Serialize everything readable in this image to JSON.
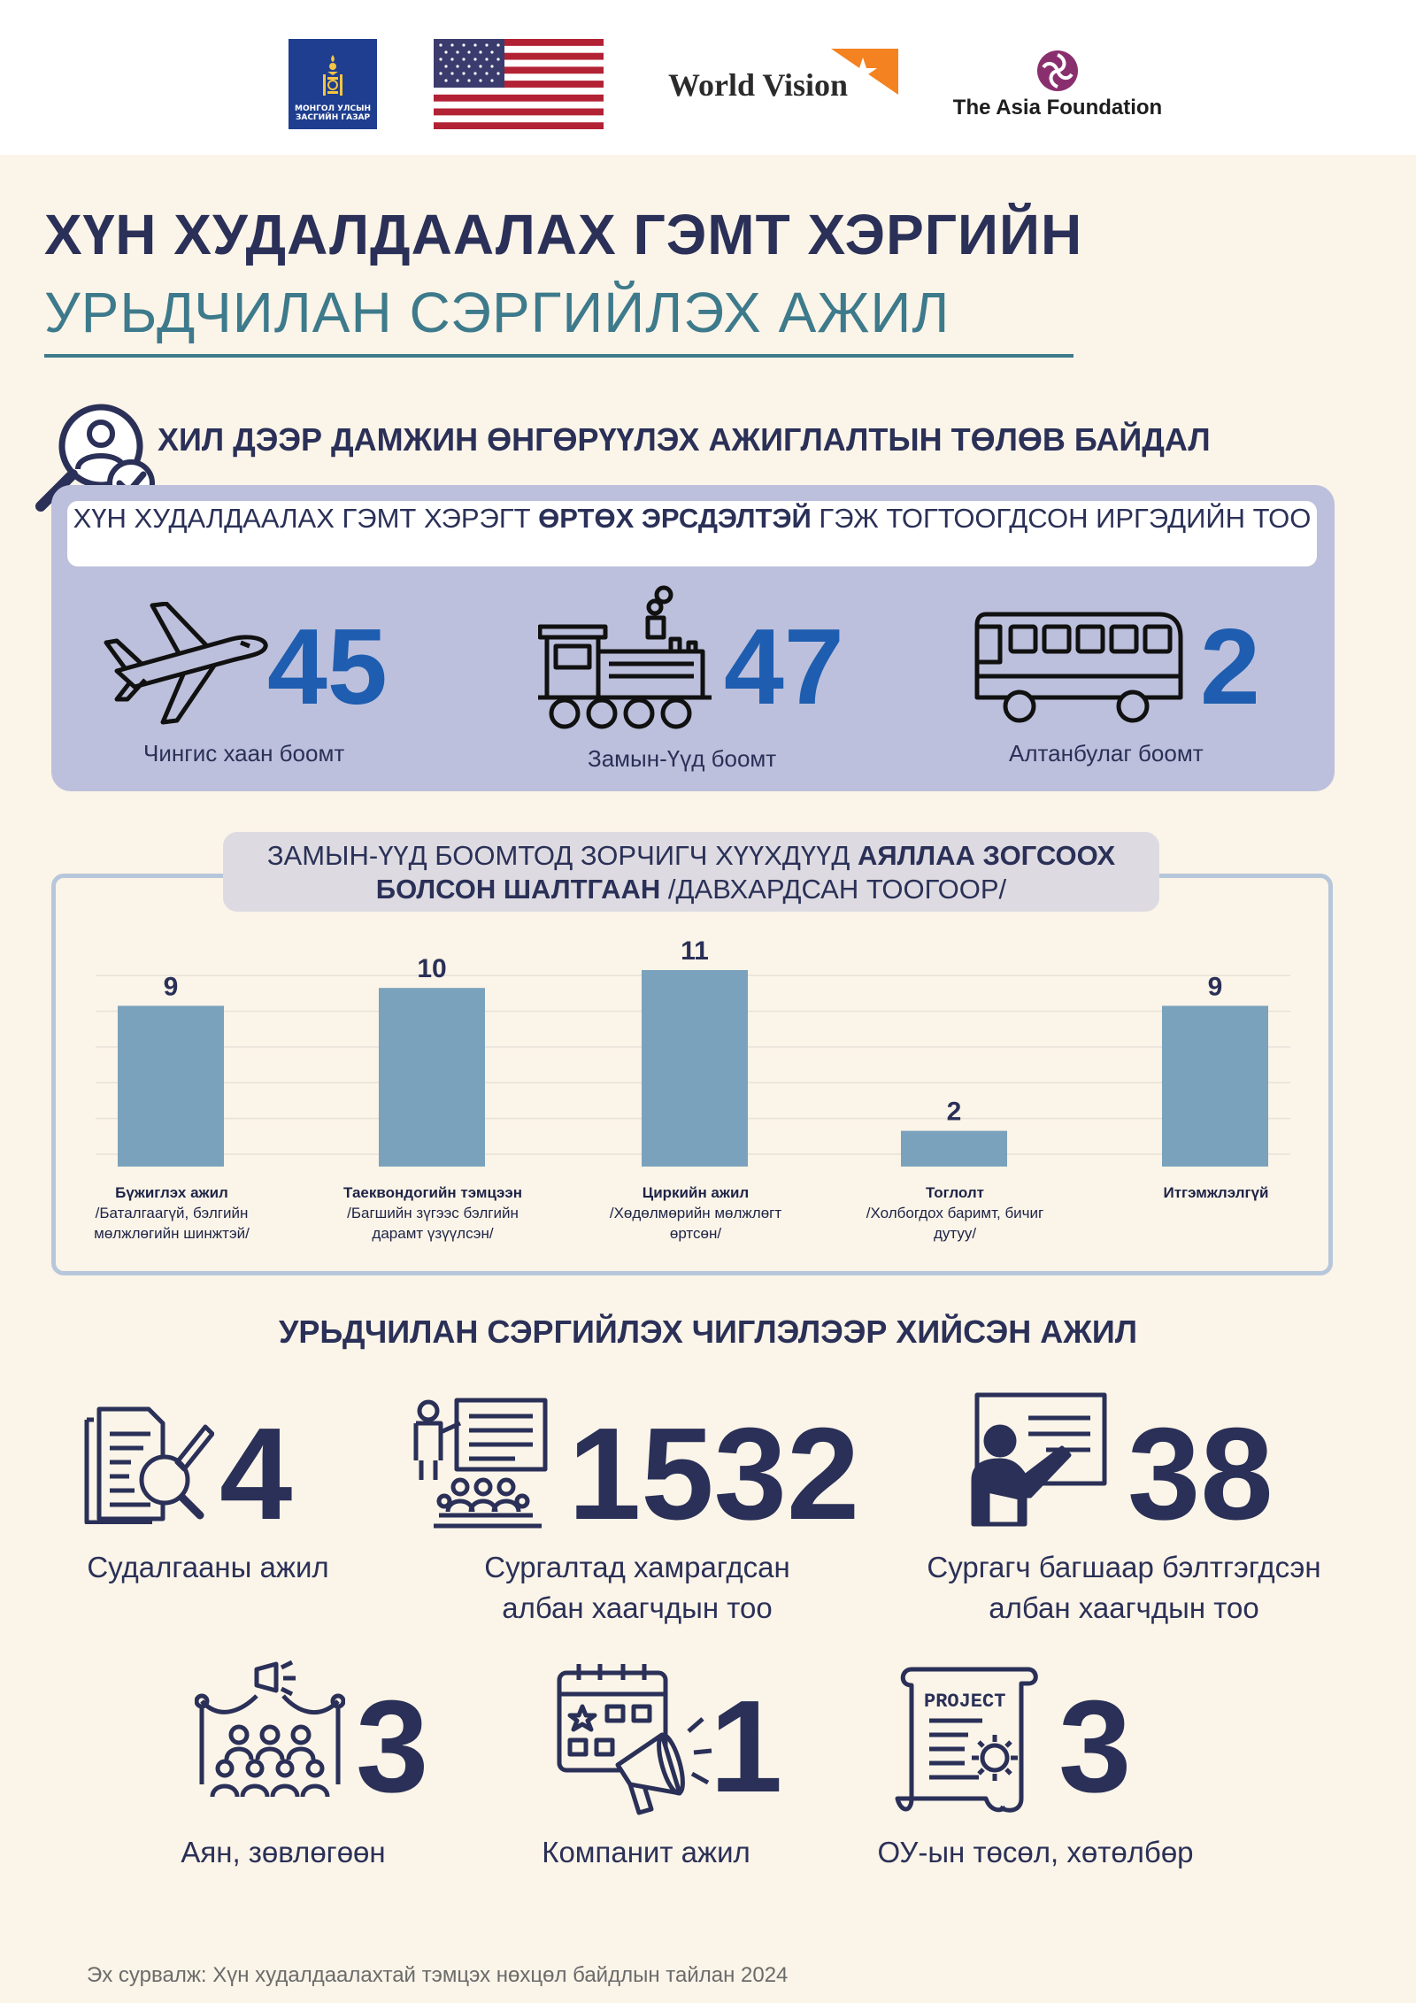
{
  "logos": {
    "gov_text": "МОНГОЛ УЛСЫН ЗАСГИЙН ГАЗАР",
    "world_vision": "World Vision",
    "asia_foundation": "The Asia Foundation"
  },
  "title": {
    "line1": "ХҮН ХУДАЛДААЛАХ ГЭМТ ХЭРГИЙН",
    "line2": "УРЬДЧИЛАН СЭРГИЙЛЭХ АЖИЛ"
  },
  "border_monitoring": {
    "heading": "ХИЛ ДЭЭР ДАМЖИН ӨНГӨРҮҮЛЭХ АЖИГЛАЛТЫН ТӨЛӨВ БАЙДАЛ",
    "subheading_pre": "ХҮН ХУДАЛДААЛАХ ГЭМТ ХЭРЭГТ ",
    "subheading_bold": "ӨРТӨХ ЭРСДЭЛТЭЙ",
    "subheading_post": " ГЭЖ ТОГТООГДСОН ИРГЭДИЙН ТОО",
    "stats": [
      {
        "value": "45",
        "label": "Чингис хаан боомт",
        "icon": "airplane-icon"
      },
      {
        "value": "47",
        "label": "Замын-Үүд боомт",
        "icon": "train-icon"
      },
      {
        "value": "2",
        "label": "Алтанбулаг боомт",
        "icon": "bus-icon"
      }
    ]
  },
  "chart_title": {
    "pre": "ЗАМЫН-ҮҮД БООМТОД ЗОРЧИГЧ ХҮҮХДҮҮД ",
    "bold1": "АЯЛЛАА ЗОГСООХ",
    "bold2": "БОЛСОН ШАЛТГААН",
    "post": " /ДАВХАРДСАН ТООГООР/"
  },
  "chart_data": {
    "type": "bar",
    "categories": [
      {
        "name": "Бүжиглэх ажил",
        "detail": "/Баталгаагүй, бэлгийн мөлжлөгийн шинжтэй/"
      },
      {
        "name": "Таеквондогийн тэмцээн",
        "detail": "/Багшийн зүгээс бэлгийн дарамт үзүүлсэн/"
      },
      {
        "name": "Циркийн ажил",
        "detail": "/Хөдөлмөрийн мөлжлөгт өртсөн/"
      },
      {
        "name": "Тоглолт",
        "detail": "/Холбогдох баримт, бичиг дутуу/"
      },
      {
        "name": "Итгэмжлэлгүй",
        "detail": ""
      }
    ],
    "values": [
      9,
      10,
      11,
      2,
      9
    ],
    "value_labels": [
      "9",
      "10",
      "11",
      "2",
      "9"
    ],
    "ylim": [
      0,
      11
    ],
    "bar_color": "#7aa2bc",
    "grid": true
  },
  "prevention": {
    "heading": "УРЬДЧИЛАН СЭРГИЙЛЭХ ЧИГЛЭЛЭЭР ХИЙСЭН АЖИЛ",
    "items": [
      {
        "value": "4",
        "label_line1": "Судалгааны ажил",
        "label_line2": "",
        "icon": "research-document-icon"
      },
      {
        "value": "1532",
        "label_line1": "Сургалтад хамрагдсан",
        "label_line2": "албан хаагчдын тоо",
        "icon": "training-audience-icon"
      },
      {
        "value": "38",
        "label_line1": "Сургагч багшаар бэлтгэгдсэн",
        "label_line2": "албан хаагчдын тоо",
        "icon": "teacher-board-icon"
      },
      {
        "value": "3",
        "label_line1": "Аян, зөвлөгөөн",
        "label_line2": "",
        "icon": "campaign-crowd-icon"
      },
      {
        "value": "1",
        "label_line1": "Компанит ажил",
        "label_line2": "",
        "icon": "calendar-megaphone-icon"
      },
      {
        "value": "3",
        "label_line1": "ОУ-ын төсөл, хөтөлбөр",
        "label_line2": "",
        "icon": "project-scroll-icon"
      }
    ],
    "project_word": "PROJECT"
  },
  "source": "Эх сурвалж: Хүн худалдаалахтай тэмцэх нөхцөл байдлын тайлан 2024"
}
